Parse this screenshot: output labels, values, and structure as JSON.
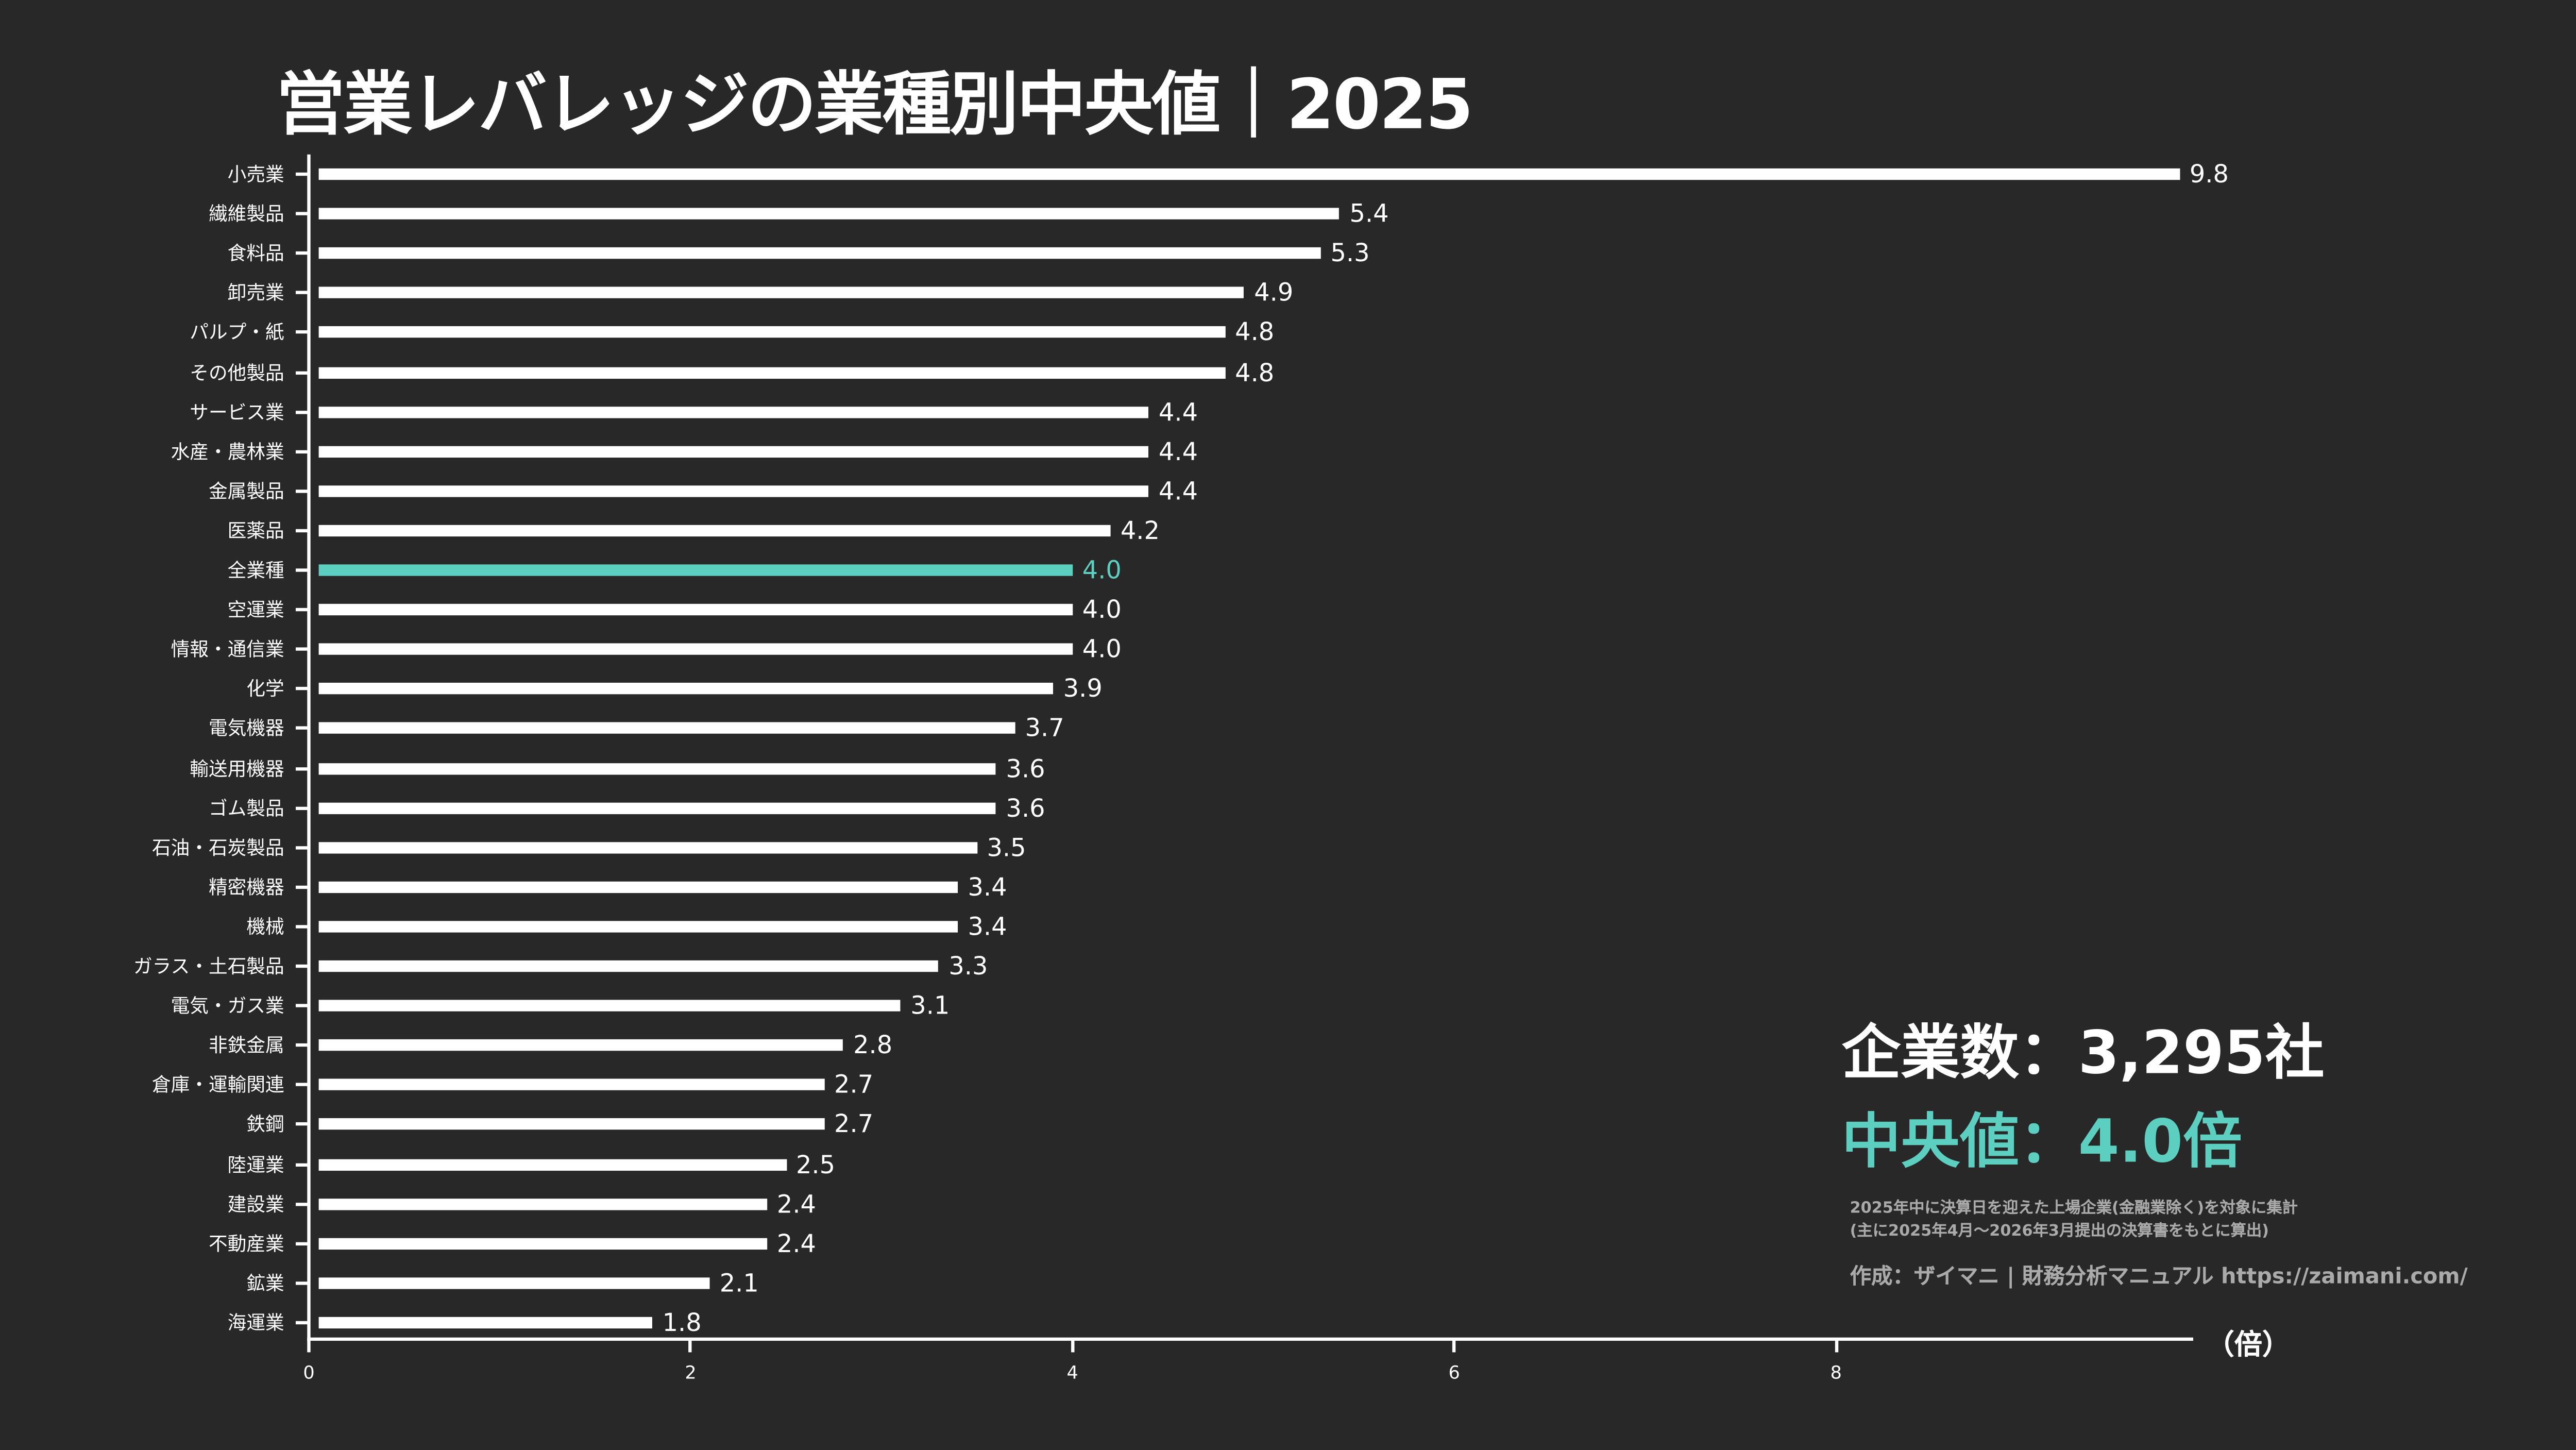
{
  "chart_data": {
    "type": "bar",
    "orientation": "horizontal",
    "title": "営業レバレッジの業種別中央値｜2025",
    "xlabel": "（倍）",
    "xlim": [
      0,
      9.8
    ],
    "xticks": [
      "0",
      "2",
      "4",
      "6",
      "8"
    ],
    "grid": false,
    "highlight_color": "#5ccfc1",
    "bar_color": "#ffffff",
    "categories": [
      "小売業",
      "繊維製品",
      "食料品",
      "卸売業",
      "パルプ・紙",
      "その他製品",
      "サービス業",
      "水産・農林業",
      "金属製品",
      "医薬品",
      "全業種",
      "空運業",
      "情報・通信業",
      "化学",
      "電気機器",
      "輸送用機器",
      "ゴム製品",
      "石油・石炭製品",
      "精密機器",
      "機械",
      "ガラス・土石製品",
      "電気・ガス業",
      "非鉄金属",
      "倉庫・運輸関連",
      "鉄鋼",
      "陸運業",
      "建設業",
      "不動産業",
      "鉱業",
      "海運業"
    ],
    "values": [
      9.8,
      5.4,
      5.3,
      4.9,
      4.8,
      4.8,
      4.4,
      4.4,
      4.4,
      4.2,
      4.0,
      4.0,
      4.0,
      3.9,
      3.7,
      3.6,
      3.6,
      3.5,
      3.4,
      3.4,
      3.3,
      3.1,
      2.8,
      2.7,
      2.7,
      2.5,
      2.4,
      2.4,
      2.1,
      1.8
    ],
    "value_labels": [
      "9.8",
      "5.4",
      "5.3",
      "4.9",
      "4.8",
      "4.8",
      "4.4",
      "4.4",
      "4.4",
      "4.2",
      "4.0",
      "4.0",
      "4.0",
      "3.9",
      "3.7",
      "3.6",
      "3.6",
      "3.5",
      "3.4",
      "3.4",
      "3.3",
      "3.1",
      "2.8",
      "2.7",
      "2.7",
      "2.5",
      "2.4",
      "2.4",
      "2.1",
      "1.8"
    ],
    "highlighted_category": "全業種"
  },
  "stats": {
    "companies": "企業数：3,295社",
    "median": "中央値：4.0倍"
  },
  "notes": {
    "line1": "2025年中に決算日を迎えた上場企業(金融業除く)を対象に集計",
    "line2": "(主に2025年4月～2026年3月提出の決算書をもとに算出)",
    "credit": "作成：ザイマニ | 財務分析マニュアル https://zaimani.com/"
  }
}
